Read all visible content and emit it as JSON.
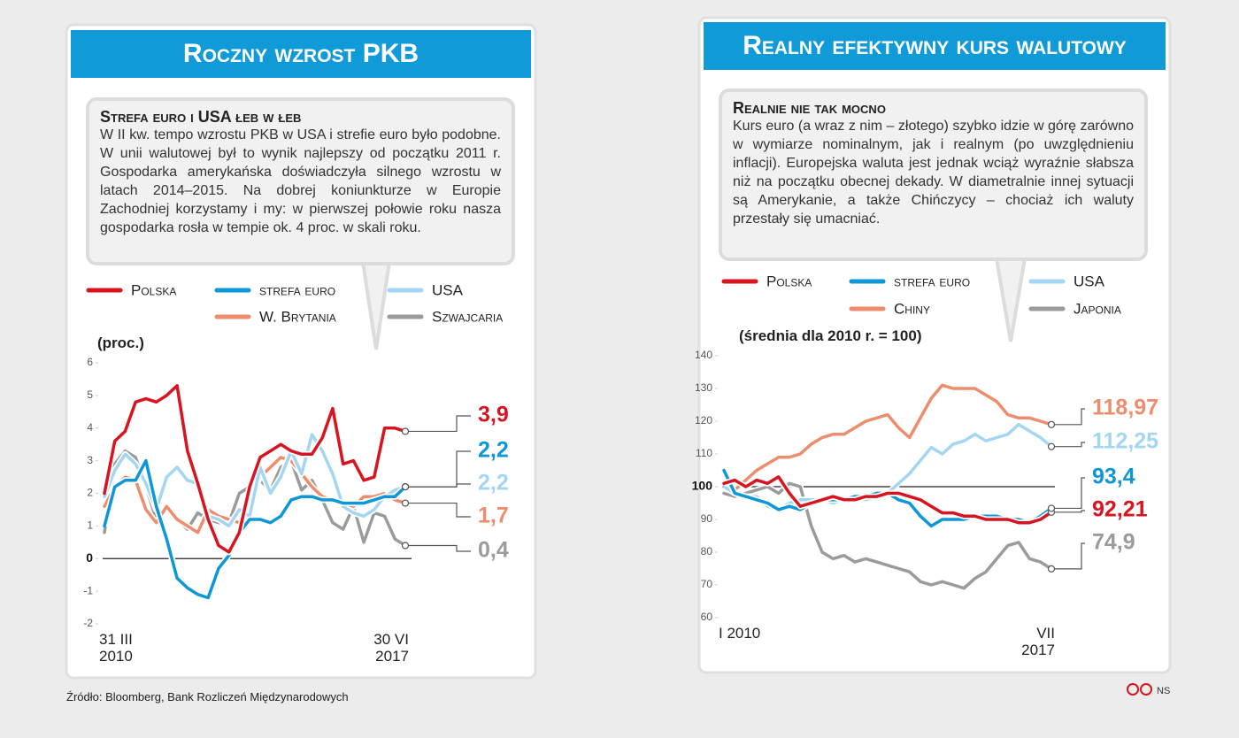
{
  "chart_data": [
    {
      "type": "line",
      "title": "Roczny wzrost PKB",
      "subtitle": "Strefa euro i USA łeb w łeb",
      "description": "W II kw. tempo wzrostu PKB w USA i strefie euro było podobne. W unii walutowej był to wynik najlepszy od początku 2011 r. Gospodarka amerykańska doświadczyła silnego wzrostu w latach 2014–2015. Na dobrej koniunkturze w Europie Zachodniej korzystamy i my: w pierwszej połowie roku nasza gospodarka rosła w tempie ok. 4 proc. w skali roku.",
      "ylabel": "(proc.)",
      "categories": [
        "31 III 2010",
        null,
        null,
        null,
        null,
        null,
        null,
        null,
        null,
        null,
        null,
        null,
        null,
        null,
        null,
        null,
        null,
        null,
        null,
        null,
        null,
        null,
        null,
        null,
        null,
        null,
        null,
        null,
        null,
        "30 VI 2017"
      ],
      "ylim": [
        -2,
        6
      ],
      "yticks": [
        -2,
        -1,
        0,
        1,
        2,
        3,
        4,
        5,
        6
      ],
      "hline": 0,
      "grid": false,
      "series": [
        {
          "name": "Polska",
          "color": "#d7141f",
          "values": [
            2.0,
            3.6,
            3.9,
            4.8,
            4.9,
            4.8,
            5.0,
            5.3,
            3.3,
            2.3,
            1.2,
            0.4,
            0.2,
            0.8,
            2.2,
            3.1,
            3.3,
            3.5,
            3.3,
            3.2,
            3.2,
            3.7,
            4.6,
            2.9,
            3.0,
            2.4,
            2.5,
            4.0,
            4.0,
            3.9
          ],
          "value_labels": [
            null,
            null,
            null,
            null,
            null,
            null,
            null,
            null,
            null,
            null,
            null,
            null,
            null,
            null,
            null,
            null,
            null,
            null,
            null,
            null,
            null,
            null,
            null,
            null,
            null,
            null,
            null,
            null,
            null,
            "3,9"
          ]
        },
        {
          "name": "strefa euro",
          "color": "#0d97d8",
          "values": [
            1.0,
            2.2,
            2.4,
            2.4,
            3.0,
            1.6,
            0.6,
            -0.6,
            -0.9,
            -1.1,
            -1.2,
            -0.3,
            0.1,
            0.8,
            1.2,
            1.2,
            1.1,
            1.3,
            1.8,
            1.9,
            1.9,
            1.8,
            1.8,
            1.7,
            1.7,
            1.7,
            1.8,
            1.9,
            1.9,
            2.2
          ],
          "value_labels": [
            null,
            null,
            null,
            null,
            null,
            null,
            null,
            null,
            null,
            null,
            null,
            null,
            null,
            null,
            null,
            null,
            null,
            null,
            null,
            null,
            null,
            null,
            null,
            null,
            null,
            null,
            null,
            null,
            null,
            "2,2"
          ]
        },
        {
          "name": "USA",
          "color": "#a3d6f2",
          "values": [
            1.9,
            2.7,
            3.2,
            2.9,
            2.3,
            1.5,
            2.5,
            2.8,
            2.4,
            2.3,
            1.3,
            1.2,
            1.0,
            1.5,
            1.3,
            2.8,
            2.0,
            2.5,
            3.3,
            2.6,
            3.8,
            3.3,
            2.6,
            1.6,
            1.4,
            1.3,
            1.5,
            1.9,
            2.1,
            2.2
          ],
          "value_labels": [
            null,
            null,
            null,
            null,
            null,
            null,
            null,
            null,
            null,
            null,
            null,
            null,
            null,
            null,
            null,
            null,
            null,
            null,
            null,
            null,
            null,
            null,
            null,
            null,
            null,
            null,
            null,
            null,
            null,
            "2,2"
          ]
        },
        {
          "name": "W. Brytania",
          "color": "#ee8d6d",
          "values": [
            1.6,
            2.2,
            2.5,
            2.4,
            1.5,
            1.1,
            1.6,
            1.2,
            1.0,
            0.8,
            1.5,
            1.3,
            1.2,
            1.1,
            1.8,
            2.5,
            2.8,
            3.1,
            3.0,
            2.6,
            2.2,
            1.9,
            1.8,
            1.7,
            1.6,
            1.9,
            1.9,
            2.0,
            1.8,
            1.7
          ],
          "value_labels": [
            null,
            null,
            null,
            null,
            null,
            null,
            null,
            null,
            null,
            null,
            null,
            null,
            null,
            null,
            null,
            null,
            null,
            null,
            null,
            null,
            null,
            null,
            null,
            null,
            null,
            null,
            null,
            null,
            null,
            "1,7"
          ]
        },
        {
          "name": "Szwajcaria",
          "color": "#9b9b9b",
          "values": [
            0.8,
            2.9,
            3.3,
            3.1,
            2.2,
            1.2,
            1.5,
            1.2,
            0.9,
            1.4,
            1.2,
            1.1,
            1.1,
            2.0,
            2.2,
            2.4,
            2.1,
            2.8,
            3.0,
            2.1,
            2.4,
            1.8,
            1.1,
            0.9,
            1.6,
            0.5,
            1.4,
            1.3,
            0.6,
            0.4
          ],
          "value_labels": [
            null,
            null,
            null,
            null,
            null,
            null,
            null,
            null,
            null,
            null,
            null,
            null,
            null,
            null,
            null,
            null,
            null,
            null,
            null,
            null,
            null,
            null,
            null,
            null,
            null,
            null,
            null,
            null,
            null,
            "0,4"
          ]
        }
      ]
    },
    {
      "type": "line",
      "title": "Realny efektywny kurs walutowy",
      "subtitle": "Realnie nie tak mocno",
      "description": "Kurs euro (a wraz z nim – złotego) szybko idzie w górę zarówno w wymiarze nominalnym, jak i realnym (po uwzględnieniu inflacji). Europejska waluta jest jednak wciąż wyraźnie słabsza niż na początku obecnej dekady. W diametralnie innej sytuacji są Amerykanie, a także Chińczycy – chociaż ich waluty przestały się umacniać.",
      "ylabel": "(średnia dla 2010 r. = 100)",
      "categories": [
        "I 2010",
        null,
        null,
        null,
        null,
        null,
        null,
        null,
        null,
        null,
        null,
        null,
        null,
        null,
        null,
        null,
        null,
        null,
        null,
        null,
        null,
        null,
        null,
        null,
        null,
        null,
        null,
        null,
        null,
        null,
        "VII 2017"
      ],
      "ylim": [
        60,
        140
      ],
      "yticks": [
        60,
        70,
        80,
        90,
        100,
        110,
        120,
        130,
        140
      ],
      "hline": 100,
      "grid": false,
      "series": [
        {
          "name": "Polska",
          "color": "#d7141f",
          "values": [
            101,
            102,
            100,
            102,
            101,
            103,
            98,
            94,
            95,
            96,
            97,
            96,
            96,
            97,
            97,
            98,
            98,
            97,
            96,
            94,
            92,
            92,
            91,
            91,
            90,
            90,
            90,
            89,
            89,
            90,
            92.21
          ],
          "value_labels": [
            null,
            null,
            null,
            null,
            null,
            null,
            null,
            null,
            null,
            null,
            null,
            null,
            null,
            null,
            null,
            null,
            null,
            null,
            null,
            null,
            null,
            null,
            null,
            null,
            null,
            null,
            null,
            null,
            null,
            null,
            "92,21"
          ]
        },
        {
          "name": "strefa euro",
          "color": "#0d97d8",
          "values": [
            105,
            98,
            97,
            96,
            95,
            93,
            94,
            93,
            95,
            96,
            96,
            96,
            97,
            97,
            98,
            98,
            96,
            95,
            91,
            88,
            90,
            90,
            90,
            91,
            91,
            91,
            90,
            90,
            89,
            91,
            93.4
          ],
          "value_labels": [
            null,
            null,
            null,
            null,
            null,
            null,
            null,
            null,
            null,
            null,
            null,
            null,
            null,
            null,
            null,
            null,
            null,
            null,
            null,
            null,
            null,
            null,
            null,
            null,
            null,
            null,
            null,
            null,
            null,
            null,
            "93,4"
          ]
        },
        {
          "name": "USA",
          "color": "#a3d6f2",
          "values": [
            100,
            98,
            97,
            97,
            94,
            93,
            95,
            96,
            96,
            96,
            95,
            96,
            97,
            96,
            97,
            98,
            101,
            104,
            108,
            112,
            110,
            113,
            114,
            116,
            114,
            115,
            116,
            119,
            117,
            115,
            112.25
          ],
          "value_labels": [
            null,
            null,
            null,
            null,
            null,
            null,
            null,
            null,
            null,
            null,
            null,
            null,
            null,
            null,
            null,
            null,
            null,
            null,
            null,
            null,
            null,
            null,
            null,
            null,
            null,
            null,
            null,
            null,
            null,
            null,
            "112,25"
          ]
        },
        {
          "name": "Chiny",
          "color": "#ee8d6d",
          "values": [
            100,
            99,
            102,
            105,
            107,
            109,
            109,
            110,
            113,
            115,
            116,
            116,
            118,
            120,
            121,
            122,
            118,
            115,
            121,
            127,
            131,
            130,
            130,
            130,
            128,
            126,
            122,
            121,
            121,
            120,
            118.97
          ],
          "value_labels": [
            null,
            null,
            null,
            null,
            null,
            null,
            null,
            null,
            null,
            null,
            null,
            null,
            null,
            null,
            null,
            null,
            null,
            null,
            null,
            null,
            null,
            null,
            null,
            null,
            null,
            null,
            null,
            null,
            null,
            null,
            "118,97"
          ]
        },
        {
          "name": "Japonia",
          "color": "#9b9b9b",
          "values": [
            98,
            97,
            98,
            99,
            100,
            98,
            101,
            100,
            88,
            80,
            78,
            79,
            77,
            78,
            77,
            76,
            75,
            74,
            71,
            70,
            71,
            70,
            69,
            72,
            74,
            78,
            82,
            83,
            78,
            77,
            74.9
          ],
          "value_labels": [
            null,
            null,
            null,
            null,
            null,
            null,
            null,
            null,
            null,
            null,
            null,
            null,
            null,
            null,
            null,
            null,
            null,
            null,
            null,
            null,
            null,
            null,
            null,
            null,
            null,
            null,
            null,
            null,
            null,
            null,
            "74,9"
          ]
        }
      ]
    }
  ],
  "footer": {
    "source": "Źródło: Bloomberg, Bank Rozliczeń Międzynarodowych",
    "credit": "NS"
  }
}
